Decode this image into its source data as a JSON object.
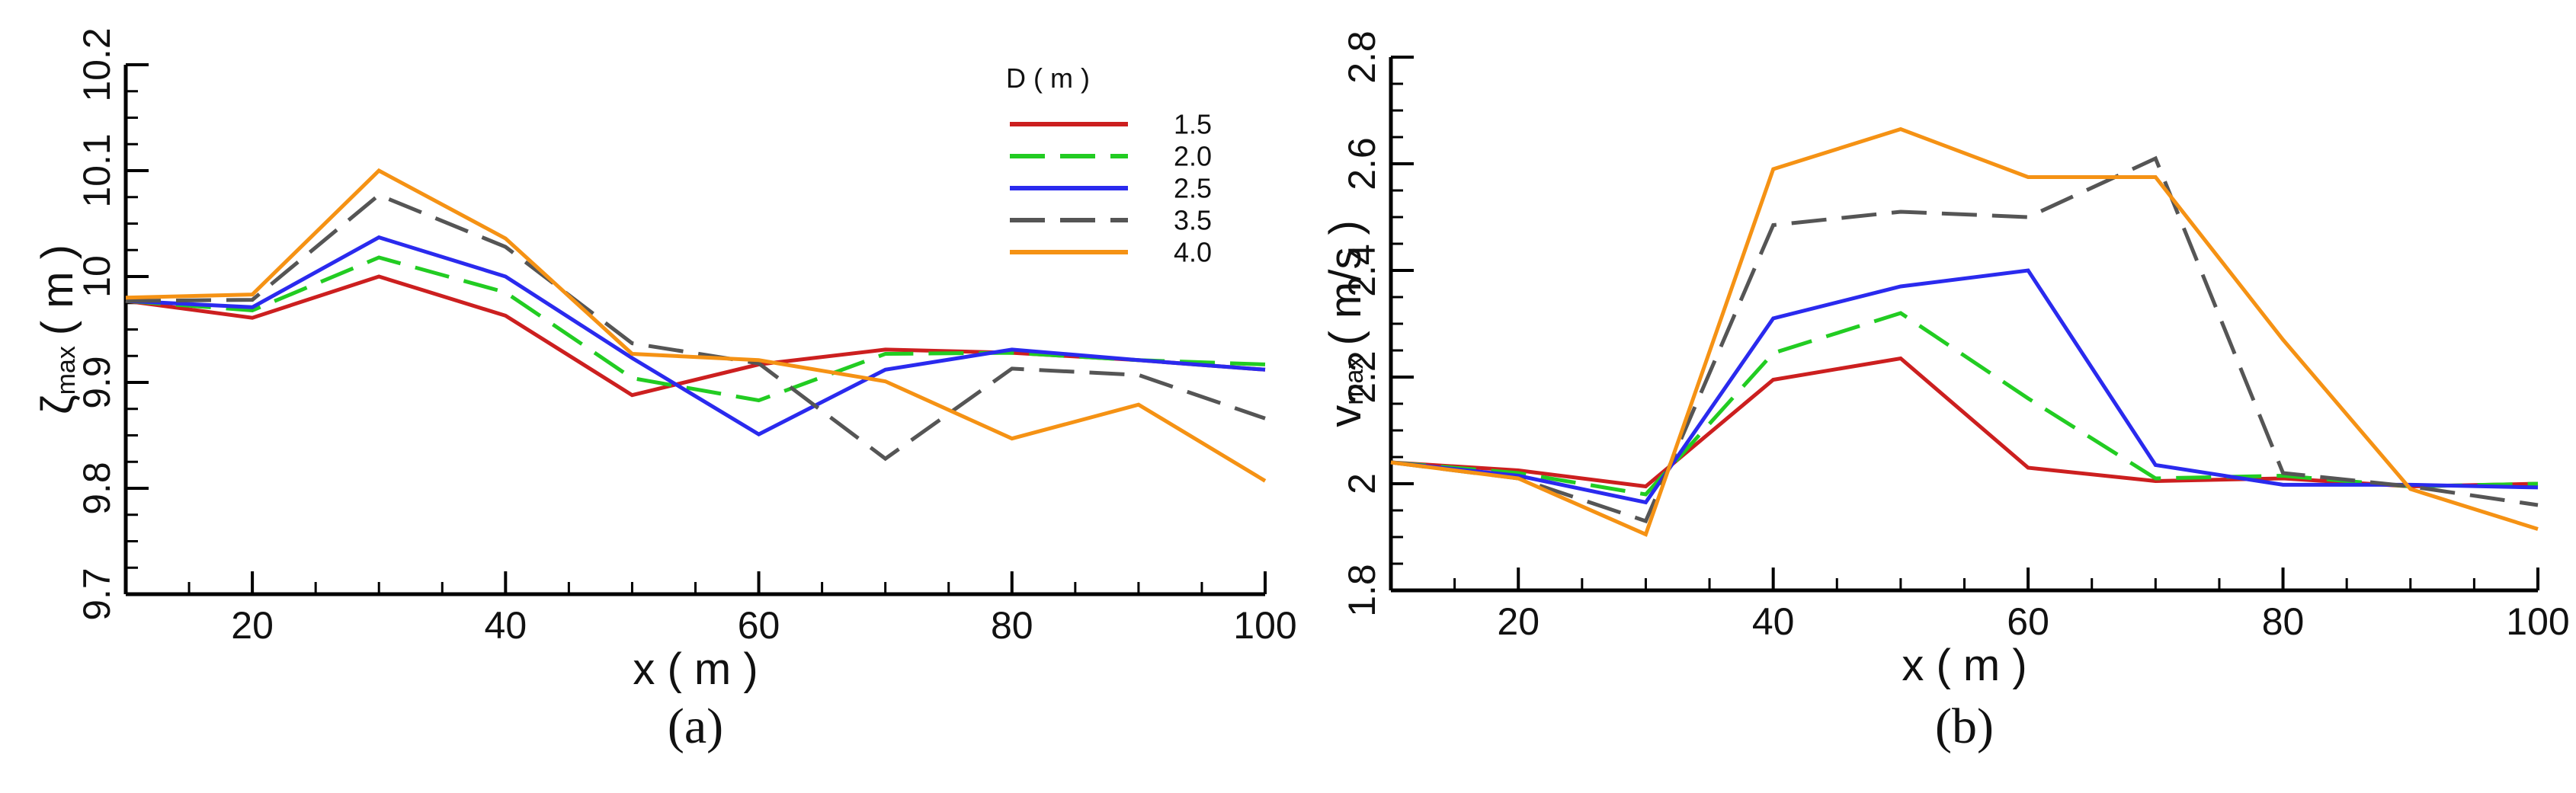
{
  "chart_data": [
    {
      "type": "line",
      "panel_label": "(a)",
      "xlabel": "x ( m )",
      "ylabel_main": "ζ",
      "ylabel_sub": "max",
      "ylabel_unit": "( m )",
      "xlim": [
        10,
        100
      ],
      "ylim": [
        9.7,
        10.2
      ],
      "xticks": [
        20,
        40,
        60,
        80,
        100
      ],
      "xtick_labels": [
        "20",
        "40",
        "60",
        "80",
        "100"
      ],
      "yticks": [
        9.7,
        9.8,
        9.9,
        10,
        10.1,
        10.2
      ],
      "ytick_labels": [
        "9.7",
        "9.8",
        "9.9",
        "10",
        "10.1",
        "10.2"
      ],
      "x": [
        10,
        20,
        30,
        40,
        50,
        60,
        70,
        80,
        90,
        100
      ],
      "legend": {
        "title": "D ( m )",
        "position": "top-right"
      },
      "series": [
        {
          "name": "1.5",
          "color": "#cc1f1f",
          "dash": "solid",
          "values": [
            9.977,
            9.961,
            10.0,
            9.963,
            9.888,
            9.917,
            9.931,
            9.928,
            9.921,
            9.912
          ]
        },
        {
          "name": "2.0",
          "color": "#22cc22",
          "dash": "dashed",
          "values": [
            9.977,
            9.968,
            10.018,
            9.985,
            9.904,
            9.883,
            9.927,
            9.928,
            9.921,
            9.917
          ]
        },
        {
          "name": "2.5",
          "color": "#2a2aee",
          "dash": "solid",
          "values": [
            9.977,
            9.971,
            10.037,
            10.0,
            9.923,
            9.851,
            9.912,
            9.931,
            9.921,
            9.912
          ]
        },
        {
          "name": "3.5",
          "color": "#555555",
          "dash": "dashed",
          "values": [
            9.977,
            9.978,
            10.077,
            10.028,
            9.937,
            9.918,
            9.828,
            9.913,
            9.907,
            9.866
          ]
        },
        {
          "name": "4.0",
          "color": "#f59214",
          "dash": "solid",
          "values": [
            9.98,
            9.983,
            10.1,
            10.036,
            9.927,
            9.921,
            9.901,
            9.847,
            9.879,
            9.807
          ]
        }
      ]
    },
    {
      "type": "line",
      "panel_label": "(b)",
      "xlabel": "x ( m )",
      "ylabel_main": "v",
      "ylabel_sub": "max",
      "ylabel_unit": "( m/s )",
      "xlim": [
        10,
        100
      ],
      "ylim": [
        1.8,
        2.8
      ],
      "xticks": [
        20,
        40,
        60,
        80,
        100
      ],
      "xtick_labels": [
        "20",
        "40",
        "60",
        "80",
        "100"
      ],
      "yticks": [
        1.8,
        2.0,
        2.2,
        2.4,
        2.6,
        2.8
      ],
      "ytick_labels": [
        "1.8",
        "2",
        "2.2",
        "2.4",
        "2.6",
        "2.8"
      ],
      "x": [
        10,
        20,
        30,
        40,
        50,
        60,
        70,
        80,
        90,
        100
      ],
      "series": [
        {
          "name": "1.5",
          "color": "#cc1f1f",
          "dash": "solid",
          "values": [
            2.04,
            2.025,
            1.995,
            2.195,
            2.235,
            2.03,
            2.005,
            2.01,
            1.995,
            2.0
          ]
        },
        {
          "name": "2.0",
          "color": "#22cc22",
          "dash": "dashed",
          "values": [
            2.04,
            2.02,
            1.98,
            2.245,
            2.32,
            2.16,
            2.01,
            2.015,
            1.995,
            2.0
          ]
        },
        {
          "name": "2.5",
          "color": "#2a2aee",
          "dash": "solid",
          "values": [
            2.04,
            2.015,
            1.965,
            2.31,
            2.37,
            2.4,
            2.035,
            1.998,
            1.998,
            1.993
          ]
        },
        {
          "name": "3.5",
          "color": "#555555",
          "dash": "dashed",
          "values": [
            2.04,
            2.01,
            1.93,
            2.485,
            2.51,
            2.5,
            2.61,
            2.02,
            1.995,
            1.96
          ]
        },
        {
          "name": "4.0",
          "color": "#f59214",
          "dash": "solid",
          "values": [
            2.04,
            2.01,
            1.905,
            2.59,
            2.665,
            2.575,
            2.575,
            2.27,
            1.99,
            1.915
          ]
        }
      ]
    }
  ]
}
